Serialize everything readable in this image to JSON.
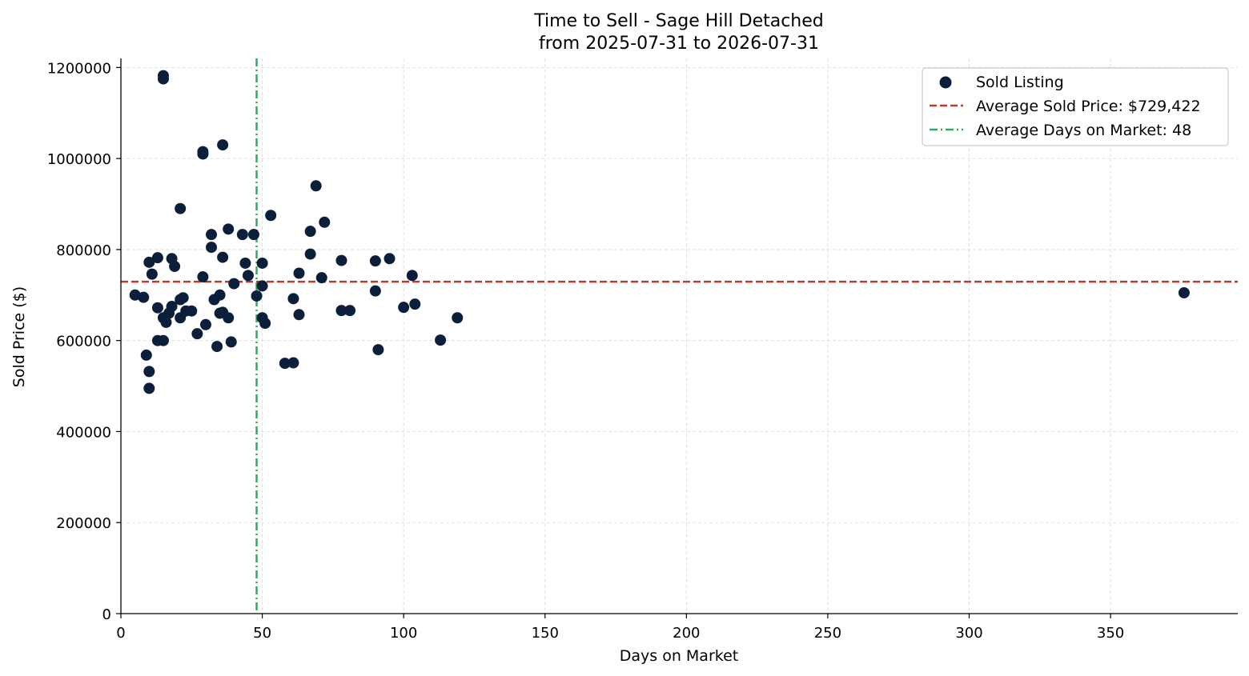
{
  "chart_data": {
    "type": "scatter",
    "title": "Time to Sell - Sage Hill Detached",
    "subtitle": "from 2025-07-31 to 2026-07-31",
    "xlabel": "Days on Market",
    "ylabel": "Sold Price ($)",
    "xlim": [
      0,
      395
    ],
    "ylim": [
      0,
      1220000
    ],
    "xticks": [
      0,
      50,
      100,
      150,
      200,
      250,
      300,
      350
    ],
    "yticks": [
      0,
      200000,
      400000,
      600000,
      800000,
      1000000,
      1200000
    ],
    "grid": true,
    "legend_position": "top-right",
    "colors": {
      "points": "#0b1f3a",
      "avg_price_line": "#c0392b",
      "avg_days_line": "#27ae60",
      "grid": "#d9d9d9"
    },
    "series": [
      {
        "name": "Sold Listing",
        "points": [
          [
            5,
            700000
          ],
          [
            8,
            695000
          ],
          [
            9,
            568000
          ],
          [
            10,
            532000
          ],
          [
            10,
            495000
          ],
          [
            10,
            772000
          ],
          [
            11,
            746000
          ],
          [
            13,
            782000
          ],
          [
            13,
            672000
          ],
          [
            13,
            600000
          ],
          [
            15,
            1182000
          ],
          [
            15,
            1175000
          ],
          [
            15,
            650000
          ],
          [
            15,
            600000
          ],
          [
            16,
            640000
          ],
          [
            17,
            660000
          ],
          [
            18,
            780000
          ],
          [
            18,
            675000
          ],
          [
            19,
            763000
          ],
          [
            21,
            890000
          ],
          [
            21,
            690000
          ],
          [
            21,
            650000
          ],
          [
            22,
            694000
          ],
          [
            23,
            665000
          ],
          [
            25,
            665000
          ],
          [
            27,
            615000
          ],
          [
            29,
            1015000
          ],
          [
            29,
            1010000
          ],
          [
            29,
            740000
          ],
          [
            30,
            635000
          ],
          [
            32,
            833000
          ],
          [
            32,
            805000
          ],
          [
            33,
            690000
          ],
          [
            34,
            587000
          ],
          [
            35,
            700000
          ],
          [
            35,
            660000
          ],
          [
            36,
            1030000
          ],
          [
            36,
            783000
          ],
          [
            36,
            662000
          ],
          [
            38,
            845000
          ],
          [
            38,
            650000
          ],
          [
            39,
            597000
          ],
          [
            40,
            725000
          ],
          [
            43,
            833000
          ],
          [
            44,
            770000
          ],
          [
            45,
            743000
          ],
          [
            47,
            833000
          ],
          [
            48,
            698000
          ],
          [
            50,
            770000
          ],
          [
            50,
            720000
          ],
          [
            50,
            650000
          ],
          [
            51,
            638000
          ],
          [
            53,
            875000
          ],
          [
            58,
            550000
          ],
          [
            61,
            692000
          ],
          [
            61,
            551000
          ],
          [
            63,
            748000
          ],
          [
            63,
            657000
          ],
          [
            67,
            840000
          ],
          [
            67,
            790000
          ],
          [
            69,
            940000
          ],
          [
            71,
            738000
          ],
          [
            72,
            860000
          ],
          [
            78,
            776000
          ],
          [
            78,
            666000
          ],
          [
            81,
            666000
          ],
          [
            90,
            775000
          ],
          [
            90,
            709000
          ],
          [
            91,
            580000
          ],
          [
            95,
            780000
          ],
          [
            100,
            673000
          ],
          [
            103,
            743000
          ],
          [
            104,
            680000
          ],
          [
            113,
            601000
          ],
          [
            119,
            650000
          ],
          [
            376,
            705000
          ]
        ]
      }
    ],
    "reference_lines": {
      "avg_price": {
        "label": "Average Sold Price: $729,422",
        "value": 729422
      },
      "avg_days": {
        "label": "Average Days on Market: 48",
        "value": 48
      }
    }
  }
}
